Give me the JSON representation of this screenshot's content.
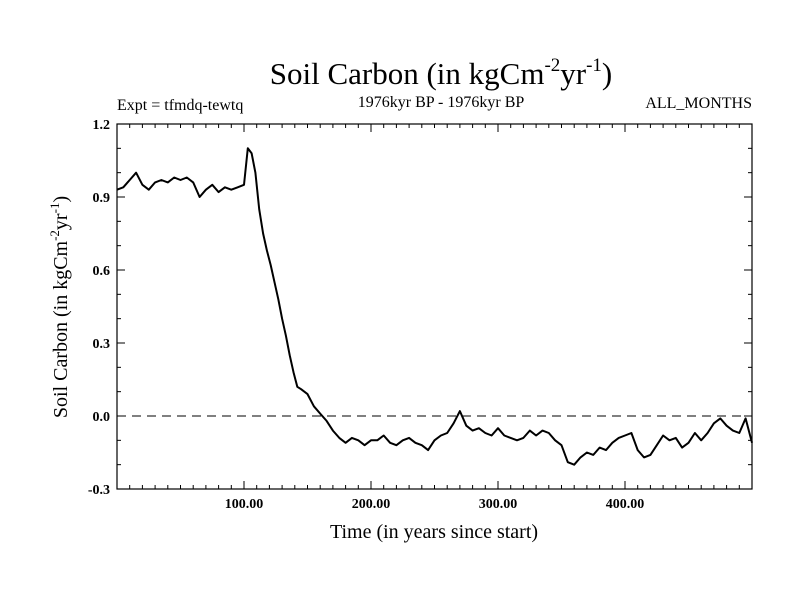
{
  "chart_data": {
    "type": "line",
    "title": {
      "main": "Soil Carbon (in kgCm",
      "sup1": "-2",
      "mid": "yr",
      "sup2": "-1",
      "end": ")"
    },
    "experiment": "Expt = tfmdq-tewtq",
    "period": "1976kyr BP - 1976kyr BP",
    "months": "ALL_MONTHS",
    "xlabel": "Time (in years since start)",
    "ylabel": {
      "main": "Soil Carbon (in kgCm",
      "sup1": "-2",
      "mid": "yr",
      "sup2": "-1",
      "end": ")"
    },
    "xlim": [
      0,
      500
    ],
    "ylim": [
      -0.3,
      1.2
    ],
    "xticks": [
      100,
      200,
      300,
      400
    ],
    "xtick_labels": [
      "100.00",
      "200.00",
      "300.00",
      "400.00"
    ],
    "yticks": [
      -0.3,
      0.0,
      0.3,
      0.6,
      0.9,
      1.2
    ],
    "ytick_labels": [
      "-0.3",
      "0.0",
      "0.3",
      "0.6",
      "0.9",
      "1.2"
    ],
    "reference_line": 0.0,
    "series": [
      {
        "name": "Soil Carbon",
        "x": [
          0,
          5,
          10,
          15,
          20,
          25,
          30,
          35,
          40,
          45,
          50,
          55,
          60,
          65,
          70,
          75,
          80,
          85,
          90,
          95,
          100,
          103,
          106,
          109,
          112,
          115,
          118,
          121,
          124,
          127,
          130,
          133,
          136,
          139,
          142,
          145,
          150,
          155,
          160,
          165,
          170,
          175,
          180,
          185,
          190,
          195,
          200,
          205,
          210,
          215,
          220,
          225,
          230,
          235,
          240,
          245,
          250,
          255,
          260,
          265,
          270,
          275,
          280,
          285,
          290,
          295,
          300,
          305,
          310,
          315,
          320,
          325,
          330,
          335,
          340,
          345,
          350,
          355,
          360,
          365,
          370,
          375,
          380,
          385,
          390,
          395,
          400,
          405,
          410,
          415,
          420,
          425,
          430,
          435,
          440,
          445,
          450,
          455,
          460,
          465,
          470,
          475,
          480,
          485,
          490,
          495,
          500
        ],
        "y": [
          0.93,
          0.94,
          0.97,
          1.0,
          0.95,
          0.93,
          0.96,
          0.97,
          0.96,
          0.98,
          0.97,
          0.98,
          0.96,
          0.9,
          0.93,
          0.95,
          0.92,
          0.94,
          0.93,
          0.94,
          0.95,
          1.1,
          1.08,
          1.0,
          0.85,
          0.75,
          0.68,
          0.62,
          0.55,
          0.48,
          0.4,
          0.33,
          0.25,
          0.18,
          0.12,
          0.11,
          0.09,
          0.04,
          0.01,
          -0.02,
          -0.06,
          -0.09,
          -0.11,
          -0.09,
          -0.1,
          -0.12,
          -0.1,
          -0.1,
          -0.08,
          -0.11,
          -0.12,
          -0.1,
          -0.09,
          -0.11,
          -0.12,
          -0.14,
          -0.1,
          -0.08,
          -0.07,
          -0.03,
          0.02,
          -0.04,
          -0.06,
          -0.05,
          -0.07,
          -0.08,
          -0.05,
          -0.08,
          -0.09,
          -0.1,
          -0.09,
          -0.06,
          -0.08,
          -0.06,
          -0.07,
          -0.1,
          -0.12,
          -0.19,
          -0.2,
          -0.17,
          -0.15,
          -0.16,
          -0.13,
          -0.14,
          -0.11,
          -0.09,
          -0.08,
          -0.07,
          -0.14,
          -0.17,
          -0.16,
          -0.12,
          -0.08,
          -0.1,
          -0.09,
          -0.13,
          -0.11,
          -0.07,
          -0.1,
          -0.07,
          -0.03,
          -0.01,
          -0.04,
          -0.06,
          -0.07,
          -0.01,
          -0.11
        ]
      }
    ]
  }
}
